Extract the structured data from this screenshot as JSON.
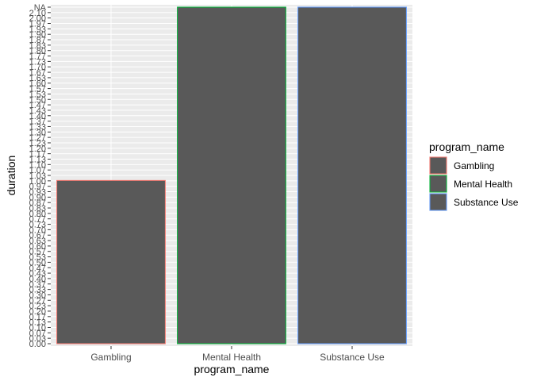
{
  "chart_data": {
    "type": "bar",
    "xlabel": "program_name",
    "ylabel": "duration",
    "categories": [
      "Gambling",
      "Mental Health",
      "Substance Use"
    ],
    "values": [
      0.97,
      2.0,
      2.0
    ],
    "ylim": [
      0,
      2.0
    ],
    "y_scale": "discrete",
    "y_ticks_visible": [
      "0.00",
      "0.03",
      "0.07",
      "0.10",
      "0.13",
      "0.17",
      "0.20",
      "0.23",
      "0.27",
      "0.30",
      "0.33",
      "0.37",
      "0.40",
      "0.43",
      "0.47",
      "0.50",
      "0.53",
      "0.57",
      "0.60",
      "0.63",
      "0.67",
      "0.70",
      "0.73",
      "0.77",
      "0.80",
      "0.83",
      "0.87",
      "0.90",
      "0.93",
      "0.97",
      "1.00",
      "1.03",
      "1.07",
      "1.10",
      "1.13",
      "1.17",
      "1.20",
      "1.23",
      "1.27",
      "1.30",
      "1.33",
      "1.37",
      "1.40",
      "1.43",
      "1.47",
      "1.50",
      "1.53",
      "1.57",
      "1.60",
      "1.63",
      "1.67",
      "1.70",
      "1.73",
      "1.77",
      "1.80",
      "1.83",
      "1.87",
      "1.90",
      "1.93",
      "1.97",
      "2.00",
      "2.10",
      "NA"
    ],
    "legend": {
      "title": "program_name",
      "position": "right",
      "items": [
        {
          "label": "Gambling",
          "color": "#F8766D"
        },
        {
          "label": "Mental Health",
          "color": "#00BA38"
        },
        {
          "label": "Substance Use",
          "color": "#619CFF"
        }
      ]
    },
    "bar_fill": "#595959",
    "panel_background": "#EBEBEB",
    "grid": true
  }
}
